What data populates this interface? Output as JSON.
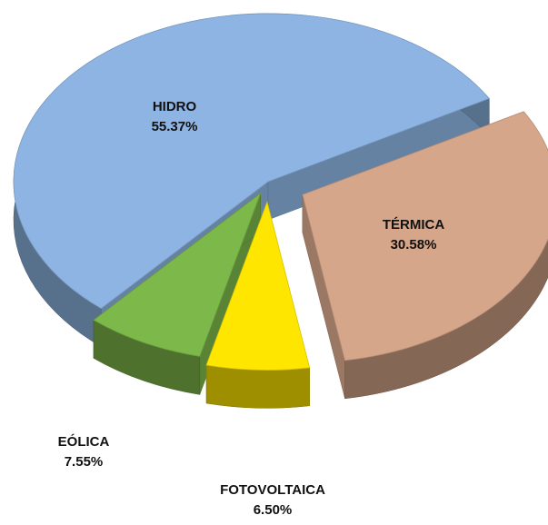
{
  "chart_data": {
    "type": "pie",
    "categories": [
      "HIDRO",
      "TÉRMICA",
      "FOTOVOLTAICA",
      "EÓLICA"
    ],
    "values": [
      55.37,
      30.58,
      6.5,
      7.55
    ],
    "value_labels": [
      "55.37%",
      "30.58%",
      "6.50%",
      "7.55%"
    ],
    "colors": [
      "#8db4e2",
      "#d6a68a",
      "#ffe600",
      "#7db84a"
    ]
  }
}
